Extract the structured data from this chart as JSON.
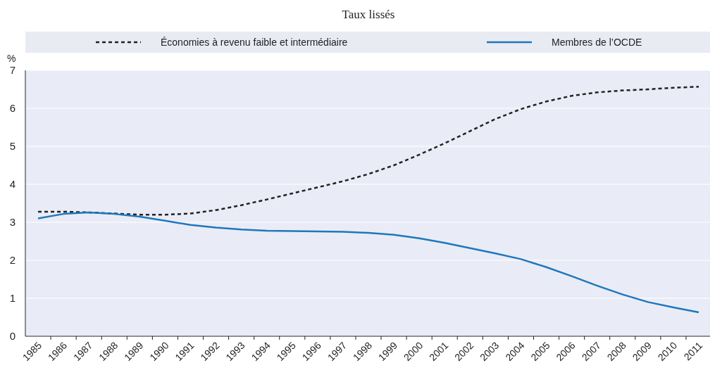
{
  "chart_data": {
    "type": "line",
    "subtitle": "Taux lissés",
    "ylabel": "%",
    "categories": [
      "1985",
      "1986",
      "1987",
      "1988",
      "1989",
      "1990",
      "1991",
      "1992",
      "1993",
      "1994",
      "1995",
      "1996",
      "1997",
      "1998",
      "1999",
      "2000",
      "2001",
      "2002",
      "2003",
      "2004",
      "2005",
      "2006",
      "2007",
      "2008",
      "2009",
      "2010",
      "2011"
    ],
    "series": [
      {
        "name": "Économies à revenu faible et intermédiaire",
        "color": "#222222",
        "line_style": "dashed",
        "values": [
          3.28,
          3.28,
          3.26,
          3.23,
          3.2,
          3.2,
          3.23,
          3.32,
          3.45,
          3.6,
          3.76,
          3.92,
          4.08,
          4.27,
          4.5,
          4.78,
          5.08,
          5.4,
          5.72,
          5.98,
          6.18,
          6.33,
          6.42,
          6.47,
          6.5,
          6.54,
          6.57
        ]
      },
      {
        "name": "Membres de l’OCDE",
        "color": "#1f77bd",
        "line_style": "solid",
        "values": [
          3.1,
          3.22,
          3.26,
          3.22,
          3.15,
          3.04,
          2.93,
          2.86,
          2.81,
          2.78,
          2.77,
          2.76,
          2.75,
          2.72,
          2.67,
          2.58,
          2.46,
          2.32,
          2.18,
          2.03,
          1.82,
          1.58,
          1.33,
          1.1,
          0.9,
          0.76,
          0.63
        ]
      }
    ],
    "ylim": [
      0,
      7
    ],
    "yticks": [
      0,
      1,
      2,
      3,
      4,
      5,
      6,
      7
    ],
    "grid": "y",
    "legend": "top",
    "marker": "none"
  }
}
